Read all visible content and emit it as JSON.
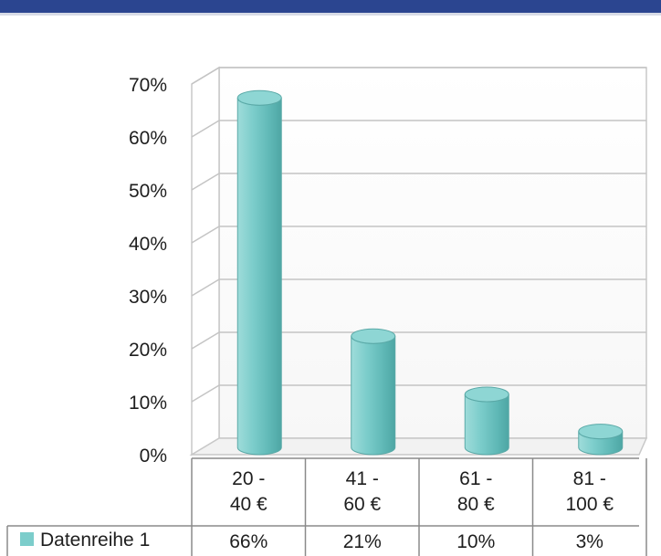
{
  "chart_data": {
    "type": "bar",
    "style": "3d-cylinder",
    "categories": [
      [
        "20 -",
        "40 €"
      ],
      [
        "41 -",
        "60 €"
      ],
      [
        "61 -",
        "80 €"
      ],
      [
        "81 -",
        "100 €"
      ]
    ],
    "series": [
      {
        "name": "Datenreihe 1",
        "values": [
          0.66,
          0.21,
          0.1,
          0.03
        ],
        "labels": [
          "66%",
          "21%",
          "10%",
          "3%"
        ],
        "color": "#7ccdcb"
      }
    ],
    "ylim": [
      0,
      0.7
    ],
    "yticks": [
      "0%",
      "10%",
      "20%",
      "30%",
      "40%",
      "50%",
      "60%",
      "70%"
    ],
    "grid": true,
    "legend": "bottom-left data table",
    "colors": {
      "frame_bar": "#2b4590",
      "bar": "#7ccdcb"
    }
  }
}
